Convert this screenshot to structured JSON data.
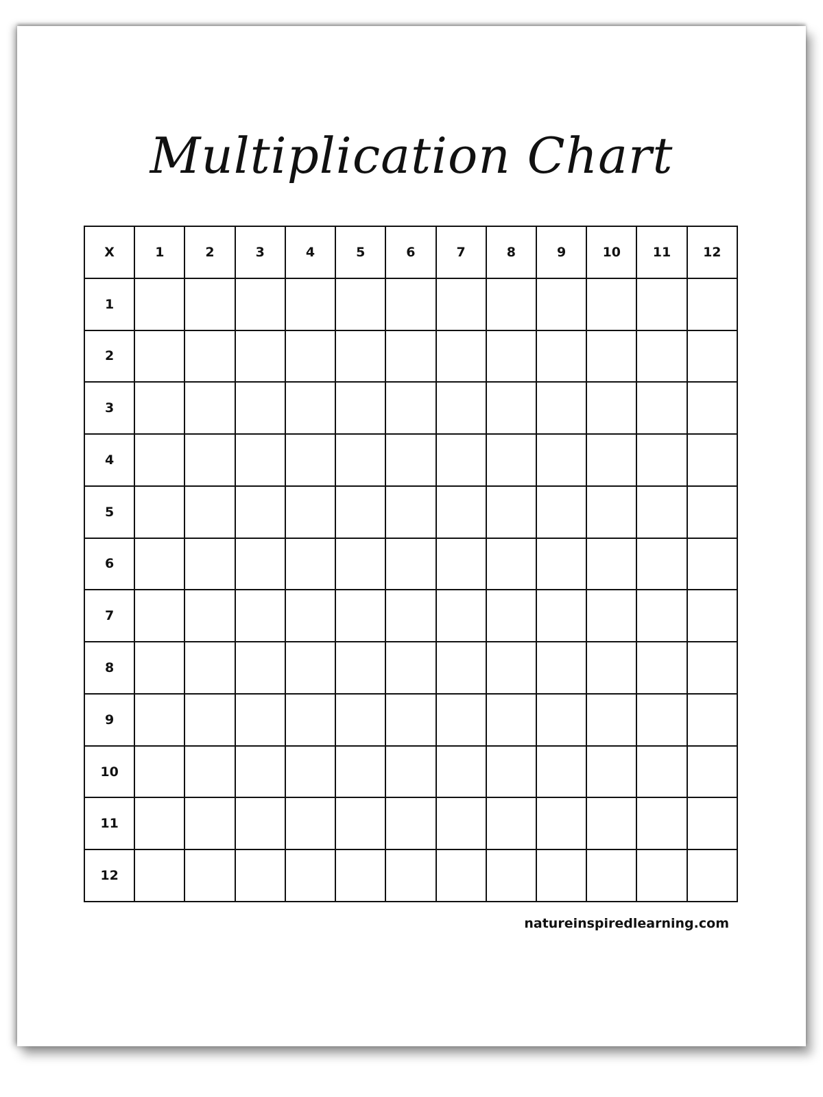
{
  "title": "Multiplication Chart",
  "table": {
    "corner": "X",
    "column_headers": [
      "1",
      "2",
      "3",
      "4",
      "5",
      "6",
      "7",
      "8",
      "9",
      "10",
      "11",
      "12"
    ],
    "row_headers": [
      "1",
      "2",
      "3",
      "4",
      "5",
      "6",
      "7",
      "8",
      "9",
      "10",
      "11",
      "12"
    ],
    "cells_filled": false
  },
  "footer": "natureinspiredlearning.com"
}
